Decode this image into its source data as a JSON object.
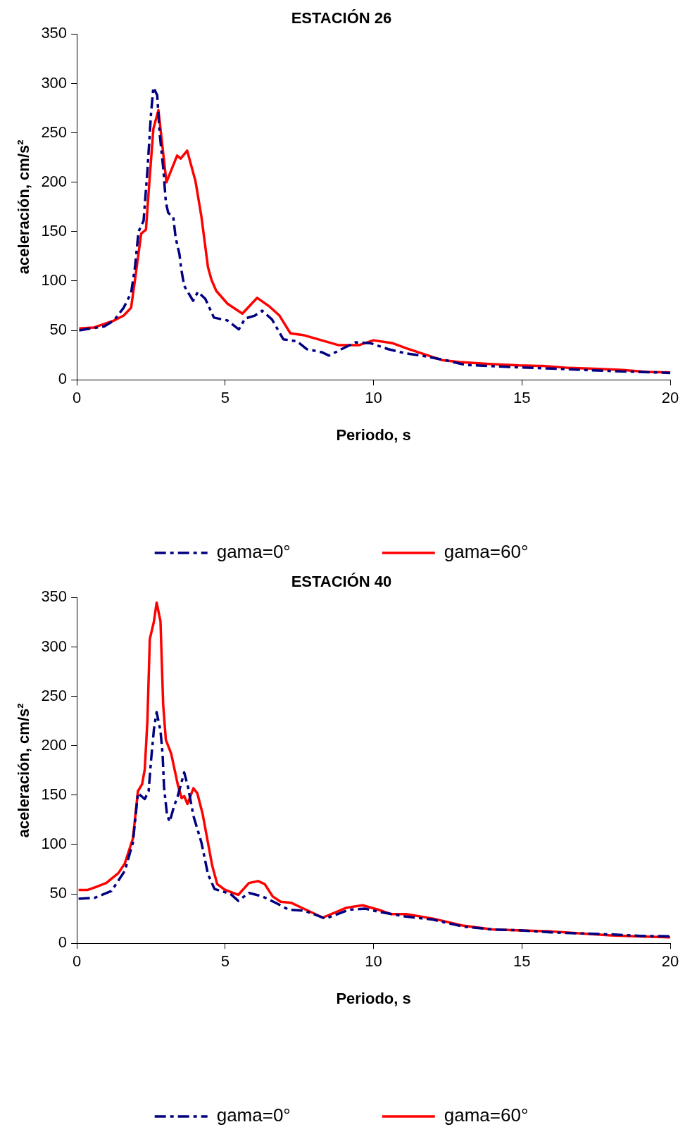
{
  "chart_data": [
    {
      "type": "line",
      "title": "ESTACIÓN 26",
      "xlabel": "Periodo, s",
      "ylabel": "aceleración, cm/s²",
      "xlim": [
        0,
        20
      ],
      "xticks": [
        0,
        5,
        10,
        15,
        20
      ],
      "ylim": [
        0,
        350
      ],
      "yticks": [
        0,
        50,
        100,
        150,
        200,
        250,
        300,
        350
      ],
      "grid": false,
      "legend": "bottom",
      "marker": "none",
      "series": [
        {
          "name": "gama=0°",
          "color": "#000080",
          "line_style": "dashed",
          "x": [
            0.08,
            0.92,
            1.25,
            1.58,
            1.83,
            1.96,
            2.08,
            2.25,
            2.38,
            2.5,
            2.58,
            2.71,
            2.79,
            2.92,
            3.0,
            3.08,
            3.25,
            3.33,
            3.46,
            3.52,
            3.62,
            3.92,
            4.08,
            4.33,
            4.62,
            5.08,
            5.46,
            5.67,
            6.0,
            6.25,
            6.58,
            6.96,
            7.42,
            7.75,
            8.25,
            8.5,
            8.92,
            9.4,
            9.9,
            10.5,
            11.05,
            11.7,
            12.4,
            13.1,
            14.6,
            16.3,
            17.9,
            20
          ],
          "values": [
            50,
            54,
            60,
            73,
            88,
            114,
            150,
            161,
            212,
            269,
            296,
            288,
            250,
            212,
            180,
            169,
            165,
            144,
            127,
            112,
            95,
            80,
            89,
            82,
            63,
            60,
            51,
            62,
            65,
            70,
            61,
            41,
            39,
            31,
            28,
            24.5,
            31,
            38,
            37,
            31,
            27,
            24,
            20,
            15,
            13,
            11,
            9,
            7
          ]
        },
        {
          "name": "gama=60°",
          "color": "#ff0000",
          "line_style": "solid",
          "x": [
            0.08,
            0.58,
            1.25,
            1.58,
            1.83,
            1.96,
            2.17,
            2.33,
            2.42,
            2.58,
            2.75,
            3.02,
            3.38,
            3.5,
            3.72,
            4.0,
            4.2,
            4.42,
            4.54,
            4.7,
            5.08,
            5.58,
            6.08,
            6.5,
            6.83,
            7.2,
            7.67,
            8.25,
            8.83,
            9.5,
            10.0,
            10.65,
            11.1,
            11.6,
            12.3,
            12.9,
            13.9,
            14.9,
            15.7,
            16.6,
            17.6,
            18.4,
            19.2,
            20
          ],
          "values": [
            52,
            53,
            60,
            65,
            73,
            101,
            148,
            152,
            190,
            254,
            273,
            200,
            227,
            224,
            232,
            201,
            165,
            114,
            101,
            90,
            77,
            67,
            83,
            74,
            65,
            47,
            45,
            40,
            35,
            35,
            40,
            37,
            32,
            27,
            20,
            18,
            16,
            14.5,
            14,
            12,
            11,
            10,
            8,
            7.5
          ]
        }
      ]
    },
    {
      "type": "line",
      "title": "ESTACIÓN 40",
      "xlabel": "Periodo, s",
      "ylabel": "aceleración, cm/s²",
      "xlim": [
        0,
        20
      ],
      "xticks": [
        0,
        5,
        10,
        15,
        20
      ],
      "ylim": [
        0,
        350
      ],
      "yticks": [
        0,
        50,
        100,
        150,
        200,
        250,
        300,
        350
      ],
      "grid": false,
      "legend": "bottom",
      "marker": "none",
      "series": [
        {
          "name": "gama=0°",
          "color": "#000080",
          "line_style": "dashed",
          "x": [
            0.06,
            0.6,
            1.17,
            1.62,
            1.89,
            2.06,
            2.29,
            2.42,
            2.51,
            2.6,
            2.69,
            2.82,
            2.89,
            2.94,
            3.04,
            3.13,
            3.27,
            3.4,
            3.62,
            3.75,
            3.93,
            4.2,
            4.42,
            4.64,
            5.18,
            5.44,
            5.8,
            6.25,
            6.7,
            7.14,
            7.67,
            8.38,
            9.18,
            9.72,
            10.16,
            11.1,
            12,
            13,
            14,
            15,
            16,
            17,
            18,
            19,
            20
          ],
          "values": [
            45,
            46,
            53,
            73.5,
            102,
            152,
            146,
            154,
            188,
            217,
            234,
            215,
            192,
            158,
            130,
            123,
            138,
            149,
            173,
            158,
            129,
            102,
            70,
            55,
            50,
            43,
            51,
            47.5,
            41,
            34,
            33,
            25,
            34,
            35,
            32,
            27,
            24,
            17,
            14,
            13,
            11,
            10,
            9,
            7.5,
            7
          ]
        },
        {
          "name": "gama=60°",
          "color": "#ff0000",
          "line_style": "solid",
          "x": [
            0.06,
            0.37,
            0.64,
            0.99,
            1.4,
            1.62,
            1.89,
            2.06,
            2.2,
            2.29,
            2.38,
            2.46,
            2.6,
            2.69,
            2.82,
            2.91,
            3.0,
            3.18,
            3.4,
            3.53,
            3.62,
            3.73,
            3.93,
            4.06,
            4.24,
            4.56,
            4.73,
            5.0,
            5.44,
            5.8,
            6.11,
            6.33,
            6.6,
            6.87,
            7.22,
            7.58,
            8.29,
            9.09,
            9.63,
            10.16,
            10.6,
            11.1,
            12,
            13,
            14,
            15,
            16,
            17,
            18,
            19,
            20
          ],
          "values": [
            54,
            54,
            57,
            61,
            71,
            81,
            106,
            154,
            161,
            176,
            226,
            308,
            326,
            345,
            326,
            242,
            206,
            192,
            161,
            147,
            149,
            141,
            157,
            152,
            131,
            79,
            60,
            54,
            49,
            61,
            63,
            60,
            47.5,
            42,
            41,
            36,
            26,
            36,
            38.5,
            34,
            29.5,
            29.5,
            25,
            18,
            14,
            13,
            12,
            10,
            8,
            7,
            6
          ]
        }
      ]
    }
  ]
}
